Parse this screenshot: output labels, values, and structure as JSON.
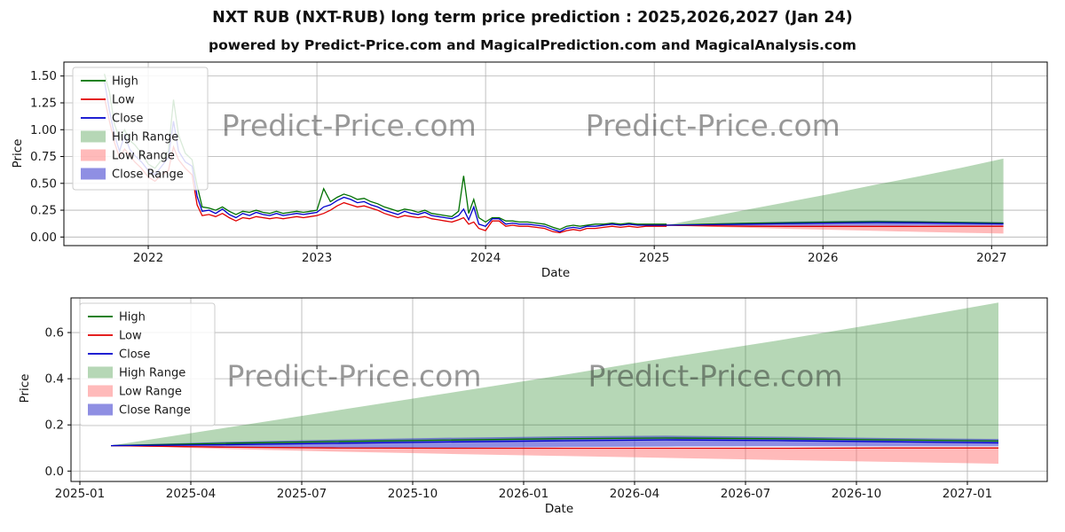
{
  "page": {
    "title": "NXT RUB (NXT-RUB) long term price prediction : 2025,2026,2027 (Jan 24)",
    "subtitle": "powered by Predict-Price.com and MagicalPrediction.com and MagicalAnalysis.com"
  },
  "watermark": {
    "text": "Predict-Price.com"
  },
  "colors": {
    "high": "#007000",
    "low": "#e10000",
    "close": "#0000cc",
    "high_range": "#2e8b2e",
    "low_range": "#ff6666",
    "close_range": "#3333cc",
    "grid": "#b0b0b0",
    "watermark": "#7f7f7f"
  },
  "legend_items": [
    {
      "label": "High",
      "type": "line",
      "color_key": "high"
    },
    {
      "label": "Low",
      "type": "line",
      "color_key": "low"
    },
    {
      "label": "Close",
      "type": "line",
      "color_key": "close"
    },
    {
      "label": "High Range",
      "type": "patch",
      "color_key": "high_range"
    },
    {
      "label": "Low Range",
      "type": "patch",
      "color_key": "low_range"
    },
    {
      "label": "Close Range",
      "type": "patch",
      "color_key": "close_range"
    }
  ],
  "chart_data": [
    {
      "type": "line",
      "name": "price-history-with-forecast",
      "title": "",
      "xlabel": "Date",
      "ylabel": "Price",
      "xlim": [
        2021.5,
        2027.33
      ],
      "ylim": [
        -0.08,
        1.63
      ],
      "xticks": [
        2022,
        2023,
        2024,
        2025,
        2026,
        2027
      ],
      "xtick_labels": [
        "2022",
        "2023",
        "2024",
        "2025",
        "2026",
        "2027"
      ],
      "yticks": [
        0,
        0.25,
        0.5,
        0.75,
        1.0,
        1.25,
        1.5
      ],
      "ytick_labels": [
        "0.00",
        "0.25",
        "0.50",
        "0.75",
        "1.00",
        "1.25",
        "1.50"
      ],
      "grid": true,
      "legend_position": "upper-left",
      "historical": {
        "columns": [
          "x",
          "high",
          "low",
          "close"
        ],
        "points_xhlc": [
          [
            2021.74,
            1.52,
            1.3,
            1.46
          ],
          [
            2021.77,
            1.35,
            1.08,
            1.18
          ],
          [
            2021.8,
            1.05,
            0.88,
            0.95
          ],
          [
            2021.83,
            0.92,
            0.74,
            0.8
          ],
          [
            2021.86,
            1.0,
            0.82,
            0.95
          ],
          [
            2021.89,
            0.9,
            0.76,
            0.82
          ],
          [
            2021.92,
            0.86,
            0.7,
            0.76
          ],
          [
            2021.96,
            0.78,
            0.64,
            0.7
          ],
          [
            2022.0,
            0.68,
            0.56,
            0.62
          ],
          [
            2022.04,
            0.64,
            0.52,
            0.58
          ],
          [
            2022.08,
            0.72,
            0.58,
            0.66
          ],
          [
            2022.12,
            0.8,
            0.62,
            0.74
          ],
          [
            2022.15,
            1.28,
            0.84,
            1.08
          ],
          [
            2022.18,
            0.95,
            0.72,
            0.8
          ],
          [
            2022.22,
            0.78,
            0.64,
            0.7
          ],
          [
            2022.26,
            0.72,
            0.58,
            0.66
          ],
          [
            2022.29,
            0.48,
            0.3,
            0.38
          ],
          [
            2022.32,
            0.28,
            0.2,
            0.24
          ],
          [
            2022.36,
            0.27,
            0.21,
            0.25
          ],
          [
            2022.4,
            0.25,
            0.19,
            0.22
          ],
          [
            2022.44,
            0.28,
            0.22,
            0.26
          ],
          [
            2022.48,
            0.24,
            0.18,
            0.21
          ],
          [
            2022.52,
            0.21,
            0.15,
            0.18
          ],
          [
            2022.56,
            0.24,
            0.18,
            0.22
          ],
          [
            2022.6,
            0.23,
            0.17,
            0.2
          ],
          [
            2022.64,
            0.25,
            0.19,
            0.23
          ],
          [
            2022.68,
            0.23,
            0.18,
            0.21
          ],
          [
            2022.72,
            0.22,
            0.17,
            0.2
          ],
          [
            2022.76,
            0.24,
            0.18,
            0.22
          ],
          [
            2022.8,
            0.22,
            0.17,
            0.2
          ],
          [
            2022.84,
            0.23,
            0.18,
            0.21
          ],
          [
            2022.88,
            0.24,
            0.19,
            0.22
          ],
          [
            2022.92,
            0.23,
            0.18,
            0.21
          ],
          [
            2022.96,
            0.24,
            0.19,
            0.22
          ],
          [
            2023.0,
            0.25,
            0.2,
            0.23
          ],
          [
            2023.04,
            0.45,
            0.22,
            0.28
          ],
          [
            2023.08,
            0.33,
            0.25,
            0.3
          ],
          [
            2023.12,
            0.37,
            0.29,
            0.34
          ],
          [
            2023.16,
            0.4,
            0.32,
            0.37
          ],
          [
            2023.2,
            0.38,
            0.3,
            0.35
          ],
          [
            2023.24,
            0.35,
            0.28,
            0.32
          ],
          [
            2023.28,
            0.36,
            0.29,
            0.33
          ],
          [
            2023.32,
            0.33,
            0.27,
            0.3
          ],
          [
            2023.36,
            0.31,
            0.25,
            0.28
          ],
          [
            2023.4,
            0.28,
            0.22,
            0.25
          ],
          [
            2023.44,
            0.26,
            0.2,
            0.23
          ],
          [
            2023.48,
            0.24,
            0.18,
            0.21
          ],
          [
            2023.52,
            0.26,
            0.2,
            0.24
          ],
          [
            2023.56,
            0.25,
            0.19,
            0.22
          ],
          [
            2023.6,
            0.23,
            0.18,
            0.21
          ],
          [
            2023.64,
            0.25,
            0.19,
            0.23
          ],
          [
            2023.68,
            0.22,
            0.17,
            0.2
          ],
          [
            2023.72,
            0.21,
            0.16,
            0.19
          ],
          [
            2023.76,
            0.2,
            0.15,
            0.18
          ],
          [
            2023.8,
            0.19,
            0.14,
            0.17
          ],
          [
            2023.84,
            0.24,
            0.16,
            0.2
          ],
          [
            2023.87,
            0.57,
            0.18,
            0.26
          ],
          [
            2023.9,
            0.22,
            0.12,
            0.16
          ],
          [
            2023.93,
            0.35,
            0.14,
            0.28
          ],
          [
            2023.96,
            0.18,
            0.08,
            0.12
          ],
          [
            2024.0,
            0.14,
            0.06,
            0.1
          ],
          [
            2024.04,
            0.18,
            0.15,
            0.17
          ],
          [
            2024.08,
            0.18,
            0.15,
            0.17
          ],
          [
            2024.12,
            0.15,
            0.1,
            0.12
          ],
          [
            2024.16,
            0.15,
            0.11,
            0.13
          ],
          [
            2024.2,
            0.14,
            0.1,
            0.12
          ],
          [
            2024.25,
            0.14,
            0.1,
            0.12
          ],
          [
            2024.3,
            0.13,
            0.09,
            0.11
          ],
          [
            2024.35,
            0.12,
            0.08,
            0.1
          ],
          [
            2024.4,
            0.09,
            0.05,
            0.07
          ],
          [
            2024.44,
            0.07,
            0.04,
            0.05
          ],
          [
            2024.48,
            0.1,
            0.06,
            0.08
          ],
          [
            2024.52,
            0.11,
            0.07,
            0.09
          ],
          [
            2024.56,
            0.1,
            0.06,
            0.08
          ],
          [
            2024.6,
            0.11,
            0.08,
            0.1
          ],
          [
            2024.65,
            0.12,
            0.08,
            0.1
          ],
          [
            2024.7,
            0.12,
            0.09,
            0.11
          ],
          [
            2024.75,
            0.13,
            0.1,
            0.12
          ],
          [
            2024.8,
            0.12,
            0.09,
            0.11
          ],
          [
            2024.85,
            0.13,
            0.1,
            0.12
          ],
          [
            2024.9,
            0.12,
            0.09,
            0.11
          ],
          [
            2024.95,
            0.12,
            0.1,
            0.11
          ],
          [
            2025.0,
            0.12,
            0.1,
            0.11
          ],
          [
            2025.07,
            0.12,
            0.1,
            0.11
          ]
        ]
      },
      "forecast": {
        "x": [
          2025.07,
          2025.32,
          2025.57,
          2025.82,
          2026.07,
          2026.32,
          2026.57,
          2026.82,
          2027.07
        ],
        "high": [
          0.11,
          0.12,
          0.128,
          0.134,
          0.14,
          0.143,
          0.14,
          0.135,
          0.13
        ],
        "low": [
          0.11,
          0.104,
          0.1,
          0.099,
          0.099,
          0.099,
          0.099,
          0.1,
          0.1
        ],
        "close": [
          0.11,
          0.114,
          0.12,
          0.126,
          0.131,
          0.135,
          0.132,
          0.127,
          0.122
        ],
        "high_range_upper": [
          0.11,
          0.185,
          0.26,
          0.335,
          0.41,
          0.49,
          0.565,
          0.645,
          0.73
        ],
        "low_range_lower": [
          0.11,
          0.096,
          0.085,
          0.075,
          0.066,
          0.057,
          0.048,
          0.04,
          0.032
        ],
        "close_range_upper": [
          0.112,
          0.126,
          0.136,
          0.144,
          0.15,
          0.153,
          0.149,
          0.143,
          0.139
        ],
        "close_range_lower": [
          0.108,
          0.102,
          0.1,
          0.101,
          0.104,
          0.106,
          0.107,
          0.107,
          0.107
        ]
      }
    },
    {
      "type": "line",
      "name": "forecast-detail",
      "title": "",
      "xlabel": "Date",
      "ylabel": "Price",
      "xlim": [
        2024.98,
        2027.18
      ],
      "ylim": [
        -0.045,
        0.75
      ],
      "xticks": [
        2025.0,
        2025.25,
        2025.5,
        2025.75,
        2026.0,
        2026.25,
        2026.5,
        2026.75,
        2027.0
      ],
      "xtick_labels": [
        "2025-01",
        "2025-04",
        "2025-07",
        "2025-10",
        "2026-01",
        "2026-04",
        "2026-07",
        "2026-10",
        "2027-01"
      ],
      "yticks": [
        0,
        0.2,
        0.4,
        0.6
      ],
      "ytick_labels": [
        "0.0",
        "0.2",
        "0.4",
        "0.6"
      ],
      "grid": true,
      "legend_position": "upper-left",
      "forecast_ref": "chart_data.0.forecast"
    }
  ]
}
